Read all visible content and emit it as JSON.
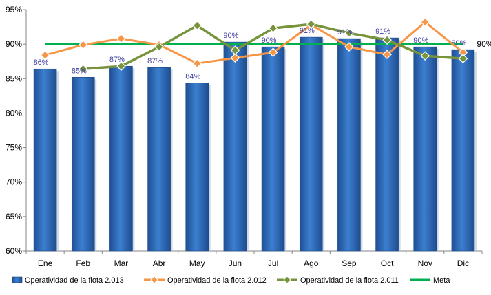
{
  "chart_data": {
    "type": "bar",
    "categories": [
      "Ene",
      "Feb",
      "Mar",
      "Abr",
      "May",
      "Jun",
      "Jul",
      "Ago",
      "Sep",
      "Oct",
      "Nov",
      "Dic"
    ],
    "ylim": [
      60,
      95
    ],
    "yticks": [
      60,
      65,
      70,
      75,
      80,
      85,
      90,
      95
    ],
    "ytick_labels": [
      "60%",
      "65%",
      "70%",
      "75%",
      "80%",
      "85%",
      "90%",
      "95%"
    ],
    "grid": false,
    "legend_position": "bottom",
    "series": [
      {
        "name": "Operatividad de la flota 2.013",
        "type": "bar",
        "color": "#2e6fc0",
        "values": [
          86.4,
          85.2,
          86.8,
          86.6,
          84.4,
          90.3,
          89.6,
          91.0,
          90.8,
          90.9,
          89.6,
          89.2
        ],
        "labels": [
          "86%",
          "85%",
          "87%",
          "87%",
          "84%",
          "90%",
          "90%",
          "91%",
          "91%",
          "91%",
          "90%",
          "89%"
        ]
      },
      {
        "name": "Operatividad de la flota 2.012",
        "type": "line",
        "color": "#f79646",
        "values": [
          88.4,
          89.9,
          90.8,
          89.9,
          87.2,
          88.0,
          88.8,
          92.8,
          89.6,
          88.5,
          93.2,
          88.8
        ]
      },
      {
        "name": "Operatividad de la flota 2.011",
        "type": "line",
        "color": "#77933c",
        "values": [
          null,
          86.4,
          86.8,
          89.6,
          92.7,
          89.1,
          92.3,
          92.9,
          91.6,
          90.6,
          88.3,
          87.9
        ]
      },
      {
        "name": "Meta",
        "type": "line",
        "color": "#00b050",
        "values": [
          90,
          90,
          90,
          90,
          90,
          90,
          90,
          90,
          90,
          90,
          90,
          90
        ],
        "end_label": "90%"
      }
    ]
  }
}
